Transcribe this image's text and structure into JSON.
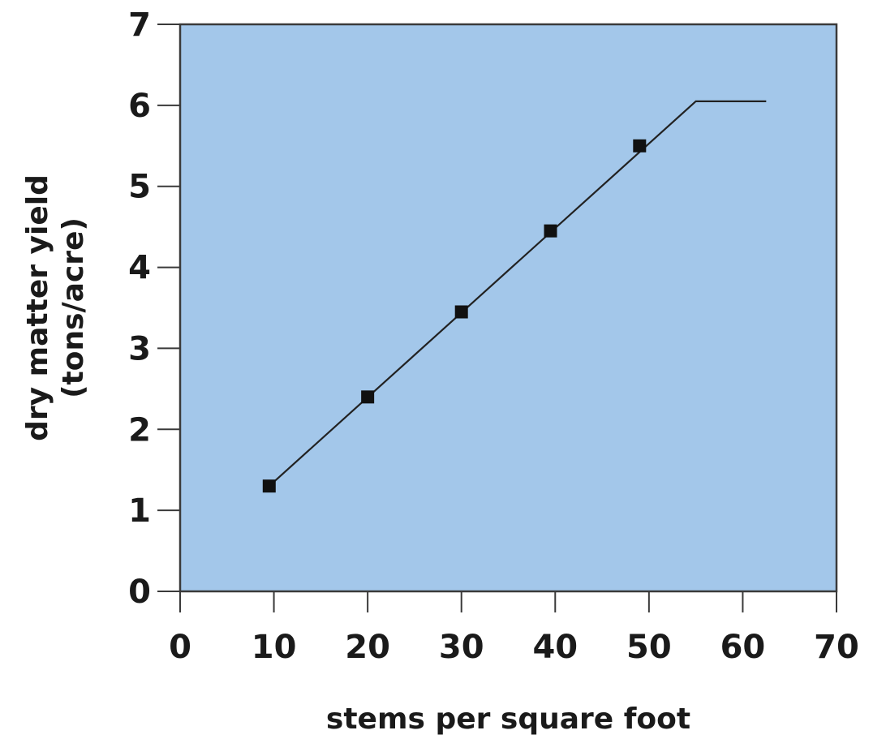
{
  "colors": {
    "plot_background": "#a3c7ea",
    "frame": "#3a3a3a",
    "line": "#222222",
    "marker": "#111111"
  },
  "chart_data": {
    "type": "line",
    "xlabel": "stems per square foot",
    "ylabel_lines": [
      "dry matter yield",
      "(tons/acre)"
    ],
    "xlim": [
      0,
      70
    ],
    "ylim": [
      0,
      7
    ],
    "x_ticks": [
      0,
      10,
      20,
      30,
      40,
      50,
      60,
      70
    ],
    "y_ticks": [
      0,
      1,
      2,
      3,
      4,
      5,
      6,
      7
    ],
    "grid": false,
    "series": [
      {
        "markers": true,
        "x": [
          9.5,
          20,
          30,
          39.5,
          49
        ],
        "y": [
          1.3,
          2.4,
          3.45,
          4.45,
          5.5
        ]
      }
    ],
    "trend_line": {
      "x": [
        9.5,
        55,
        62.5
      ],
      "y": [
        1.3,
        6.05,
        6.05
      ]
    }
  }
}
